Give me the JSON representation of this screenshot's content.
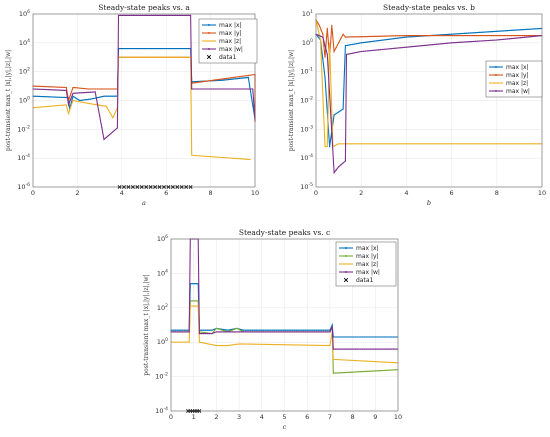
{
  "chart_data": [
    {
      "id": "a",
      "type": "line",
      "title": "Steady-state peaks vs. a",
      "xlabel": "a",
      "ylabel": "post-transient max_t |x|,|y|,|z|,|w|",
      "yscale": "log",
      "xlim": [
        0,
        10
      ],
      "ylim": [
        -6,
        6
      ],
      "x_ticks": [
        "0",
        "2",
        "4",
        "6",
        "8",
        "10"
      ],
      "y_ticks": [
        -6,
        -4,
        -2,
        0,
        2,
        4,
        6
      ],
      "grid": true,
      "legend_position": "top-right",
      "series": [
        {
          "name": "max |x|",
          "color": "#0072BD",
          "marker": "dot",
          "points": [
            [
              0,
              0.3
            ],
            [
              1.6,
              0.2
            ],
            [
              1.65,
              -0.6
            ],
            [
              1.8,
              0.3
            ],
            [
              2.1,
              0
            ],
            [
              2.6,
              0.1
            ],
            [
              3.2,
              0.3
            ],
            [
              3.8,
              0.3
            ],
            [
              3.85,
              3.6
            ],
            [
              7.1,
              3.6
            ],
            [
              7.15,
              1.3
            ],
            [
              8.5,
              1.4
            ],
            [
              9.7,
              1.6
            ],
            [
              10,
              -1.3
            ]
          ]
        },
        {
          "name": "max |y|",
          "color": "#D95319",
          "marker": "dot",
          "points": [
            [
              0,
              1.0
            ],
            [
              1.5,
              0.9
            ],
            [
              1.6,
              0
            ],
            [
              1.8,
              0.9
            ],
            [
              2.5,
              0.8
            ],
            [
              3.8,
              0.8
            ],
            [
              3.85,
              3.0
            ],
            [
              7.1,
              3.0
            ],
            [
              7.15,
              1.2
            ],
            [
              10,
              1.8
            ],
            [
              10,
              -1.5
            ]
          ]
        },
        {
          "name": "max |z|",
          "color": "#EDB120",
          "marker": "none",
          "points": [
            [
              0,
              -0.5
            ],
            [
              1.5,
              -0.3
            ],
            [
              1.6,
              -0.9
            ],
            [
              1.8,
              0
            ],
            [
              2.5,
              -0.2
            ],
            [
              3.3,
              -0.4
            ],
            [
              3.6,
              -1.2
            ],
            [
              3.8,
              -0.5
            ],
            [
              3.85,
              3.0
            ],
            [
              7.1,
              3.0
            ],
            [
              7.15,
              -3.8
            ],
            [
              9.8,
              -4.1
            ]
          ]
        },
        {
          "name": "max |w|",
          "color": "#7E2F8E",
          "marker": "dot",
          "points": [
            [
              0,
              0.8
            ],
            [
              1.5,
              0.7
            ],
            [
              1.6,
              -0.3
            ],
            [
              1.8,
              0.5
            ],
            [
              2.8,
              0.6
            ],
            [
              3.2,
              -2.7
            ],
            [
              3.8,
              -1.9
            ],
            [
              3.85,
              5.9
            ],
            [
              7.1,
              5.9
            ],
            [
              7.15,
              0.8
            ],
            [
              9.9,
              0.8
            ],
            [
              10,
              -1.4
            ]
          ]
        },
        {
          "name": "data1",
          "color": "#000000",
          "marker": "x",
          "points": [
            [
              3.9,
              -6
            ],
            [
              4.1,
              -6
            ],
            [
              4.3,
              -6
            ],
            [
              4.5,
              -6
            ],
            [
              4.7,
              -6
            ],
            [
              4.9,
              -6
            ],
            [
              5.1,
              -6
            ],
            [
              5.3,
              -6
            ],
            [
              5.5,
              -6
            ],
            [
              5.7,
              -6
            ],
            [
              5.9,
              -6
            ],
            [
              6.1,
              -6
            ],
            [
              6.3,
              -6
            ],
            [
              6.5,
              -6
            ],
            [
              6.7,
              -6
            ],
            [
              6.9,
              -6
            ],
            [
              7.1,
              -6
            ]
          ]
        }
      ]
    },
    {
      "id": "b",
      "type": "line",
      "title": "Steady-state peaks vs. b",
      "xlabel": "b",
      "ylabel": "post-transient max_t |x|,|y|,|z|,|w|",
      "yscale": "log",
      "xlim": [
        0,
        10
      ],
      "ylim": [
        -5,
        1
      ],
      "x_ticks": [
        "0",
        "2",
        "4",
        "6",
        "8",
        "10"
      ],
      "y_ticks": [
        -5,
        -4,
        -3,
        -2,
        -1,
        0,
        1
      ],
      "grid": true,
      "legend_position": "center-right",
      "series": [
        {
          "name": "max |x|",
          "color": "#0072BD",
          "marker": "dot",
          "points": [
            [
              0,
              0.3
            ],
            [
              0.2,
              0.1
            ],
            [
              0.4,
              -1.2
            ],
            [
              0.6,
              -3.6
            ],
            [
              0.8,
              -2.5
            ],
            [
              1.2,
              -2.3
            ],
            [
              1.3,
              -0.1
            ],
            [
              2,
              0.0
            ],
            [
              4,
              0.2
            ],
            [
              6,
              0.3
            ],
            [
              8,
              0.4
            ],
            [
              10,
              0.5
            ]
          ]
        },
        {
          "name": "max |y|",
          "color": "#D95319",
          "marker": "dot",
          "points": [
            [
              0,
              0.8
            ],
            [
              0.15,
              0.6
            ],
            [
              0.3,
              0.3
            ],
            [
              0.4,
              -0.5
            ],
            [
              0.5,
              0.5
            ],
            [
              0.6,
              -0.5
            ],
            [
              0.7,
              0.6
            ],
            [
              0.8,
              -0.3
            ],
            [
              1.2,
              0.3
            ],
            [
              1.3,
              0.2
            ],
            [
              4,
              0.25
            ],
            [
              10,
              0.25
            ]
          ]
        },
        {
          "name": "max |z|",
          "color": "#EDB120",
          "marker": "none",
          "points": [
            [
              0,
              0.8
            ],
            [
              0.2,
              0.1
            ],
            [
              0.4,
              -3.6
            ],
            [
              0.5,
              -3.6
            ],
            [
              0.6,
              0
            ],
            [
              0.75,
              -3.6
            ],
            [
              1.0,
              -3.5
            ],
            [
              1.3,
              -3.5
            ],
            [
              10,
              -3.5
            ]
          ]
        },
        {
          "name": "max |w|",
          "color": "#7E2F8E",
          "marker": "dot",
          "points": [
            [
              0,
              0.3
            ],
            [
              0.3,
              0.2
            ],
            [
              0.5,
              -0.4
            ],
            [
              0.8,
              -4.5
            ],
            [
              1.0,
              -4.3
            ],
            [
              1.3,
              -4.1
            ],
            [
              1.35,
              -0.4
            ],
            [
              2,
              -0.3
            ],
            [
              4,
              -0.15
            ],
            [
              6,
              0
            ],
            [
              8,
              0.1
            ],
            [
              10,
              0.25
            ]
          ]
        }
      ]
    },
    {
      "id": "c",
      "type": "line",
      "title": "Steady-state peaks vs. c",
      "xlabel": "c",
      "ylabel": "post-transient max_t |x|,|y|,|z|,|w|",
      "yscale": "log",
      "xlim": [
        0,
        10
      ],
      "ylim": [
        -4,
        6
      ],
      "x_ticks": [
        "0",
        "1",
        "2",
        "3",
        "4",
        "5",
        "6",
        "7",
        "8",
        "9",
        "10"
      ],
      "y_ticks": [
        -4,
        -2,
        0,
        2,
        4,
        6
      ],
      "grid": true,
      "legend_position": "top-right",
      "series": [
        {
          "name": "max |x|",
          "color": "#0072BD",
          "marker": "dot",
          "points": [
            [
              0,
              0.7
            ],
            [
              0.8,
              0.7
            ],
            [
              0.85,
              3.4
            ],
            [
              1.2,
              3.4
            ],
            [
              1.25,
              0.7
            ],
            [
              1.8,
              0.7
            ],
            [
              2.0,
              0.8
            ],
            [
              2.5,
              0.7
            ],
            [
              2.9,
              0.8
            ],
            [
              3.2,
              0.7
            ],
            [
              7,
              0.7
            ],
            [
              7.1,
              1.0
            ],
            [
              7.15,
              0.3
            ],
            [
              10,
              0.3
            ]
          ]
        },
        {
          "name": "max |y|",
          "color": "#77AC30",
          "marker": "dot",
          "points": [
            [
              0,
              0.6
            ],
            [
              0.8,
              0.6
            ],
            [
              0.85,
              2.4
            ],
            [
              1.2,
              2.4
            ],
            [
              1.25,
              0.6
            ],
            [
              1.8,
              0.5
            ],
            [
              2.0,
              0.8
            ],
            [
              2.5,
              0.6
            ],
            [
              2.9,
              0.8
            ],
            [
              3.2,
              0.6
            ],
            [
              7,
              0.6
            ],
            [
              7.1,
              0.9
            ],
            [
              7.15,
              -1.8
            ],
            [
              10,
              -1.6
            ]
          ]
        },
        {
          "name": "max |z|",
          "color": "#EDB120",
          "marker": "none",
          "points": [
            [
              0,
              0
            ],
            [
              0.8,
              0
            ],
            [
              0.85,
              2.1
            ],
            [
              1.2,
              2.1
            ],
            [
              1.25,
              0
            ],
            [
              2,
              -0.2
            ],
            [
              2.5,
              -0.2
            ],
            [
              3,
              -0.1
            ],
            [
              7,
              -0.2
            ],
            [
              7.1,
              0.6
            ],
            [
              7.15,
              -1.0
            ],
            [
              10,
              -1.2
            ]
          ]
        },
        {
          "name": "max |w|",
          "color": "#7E2F8E",
          "marker": "dot",
          "points": [
            [
              0,
              0.6
            ],
            [
              0.8,
              0.6
            ],
            [
              0.85,
              6
            ],
            [
              1.2,
              6
            ],
            [
              1.25,
              0.5
            ],
            [
              1.8,
              0.5
            ],
            [
              2,
              0.6
            ],
            [
              2.9,
              0.6
            ],
            [
              7,
              0.6
            ],
            [
              7.1,
              0.9
            ],
            [
              7.15,
              -0.4
            ],
            [
              10,
              -0.4
            ]
          ]
        },
        {
          "name": "data1",
          "color": "#000000",
          "marker": "x",
          "points": [
            [
              0.75,
              -4
            ],
            [
              0.85,
              -4
            ],
            [
              0.95,
              -4
            ],
            [
              1.05,
              -4
            ],
            [
              1.15,
              -4
            ],
            [
              1.25,
              -4
            ]
          ]
        }
      ]
    }
  ]
}
